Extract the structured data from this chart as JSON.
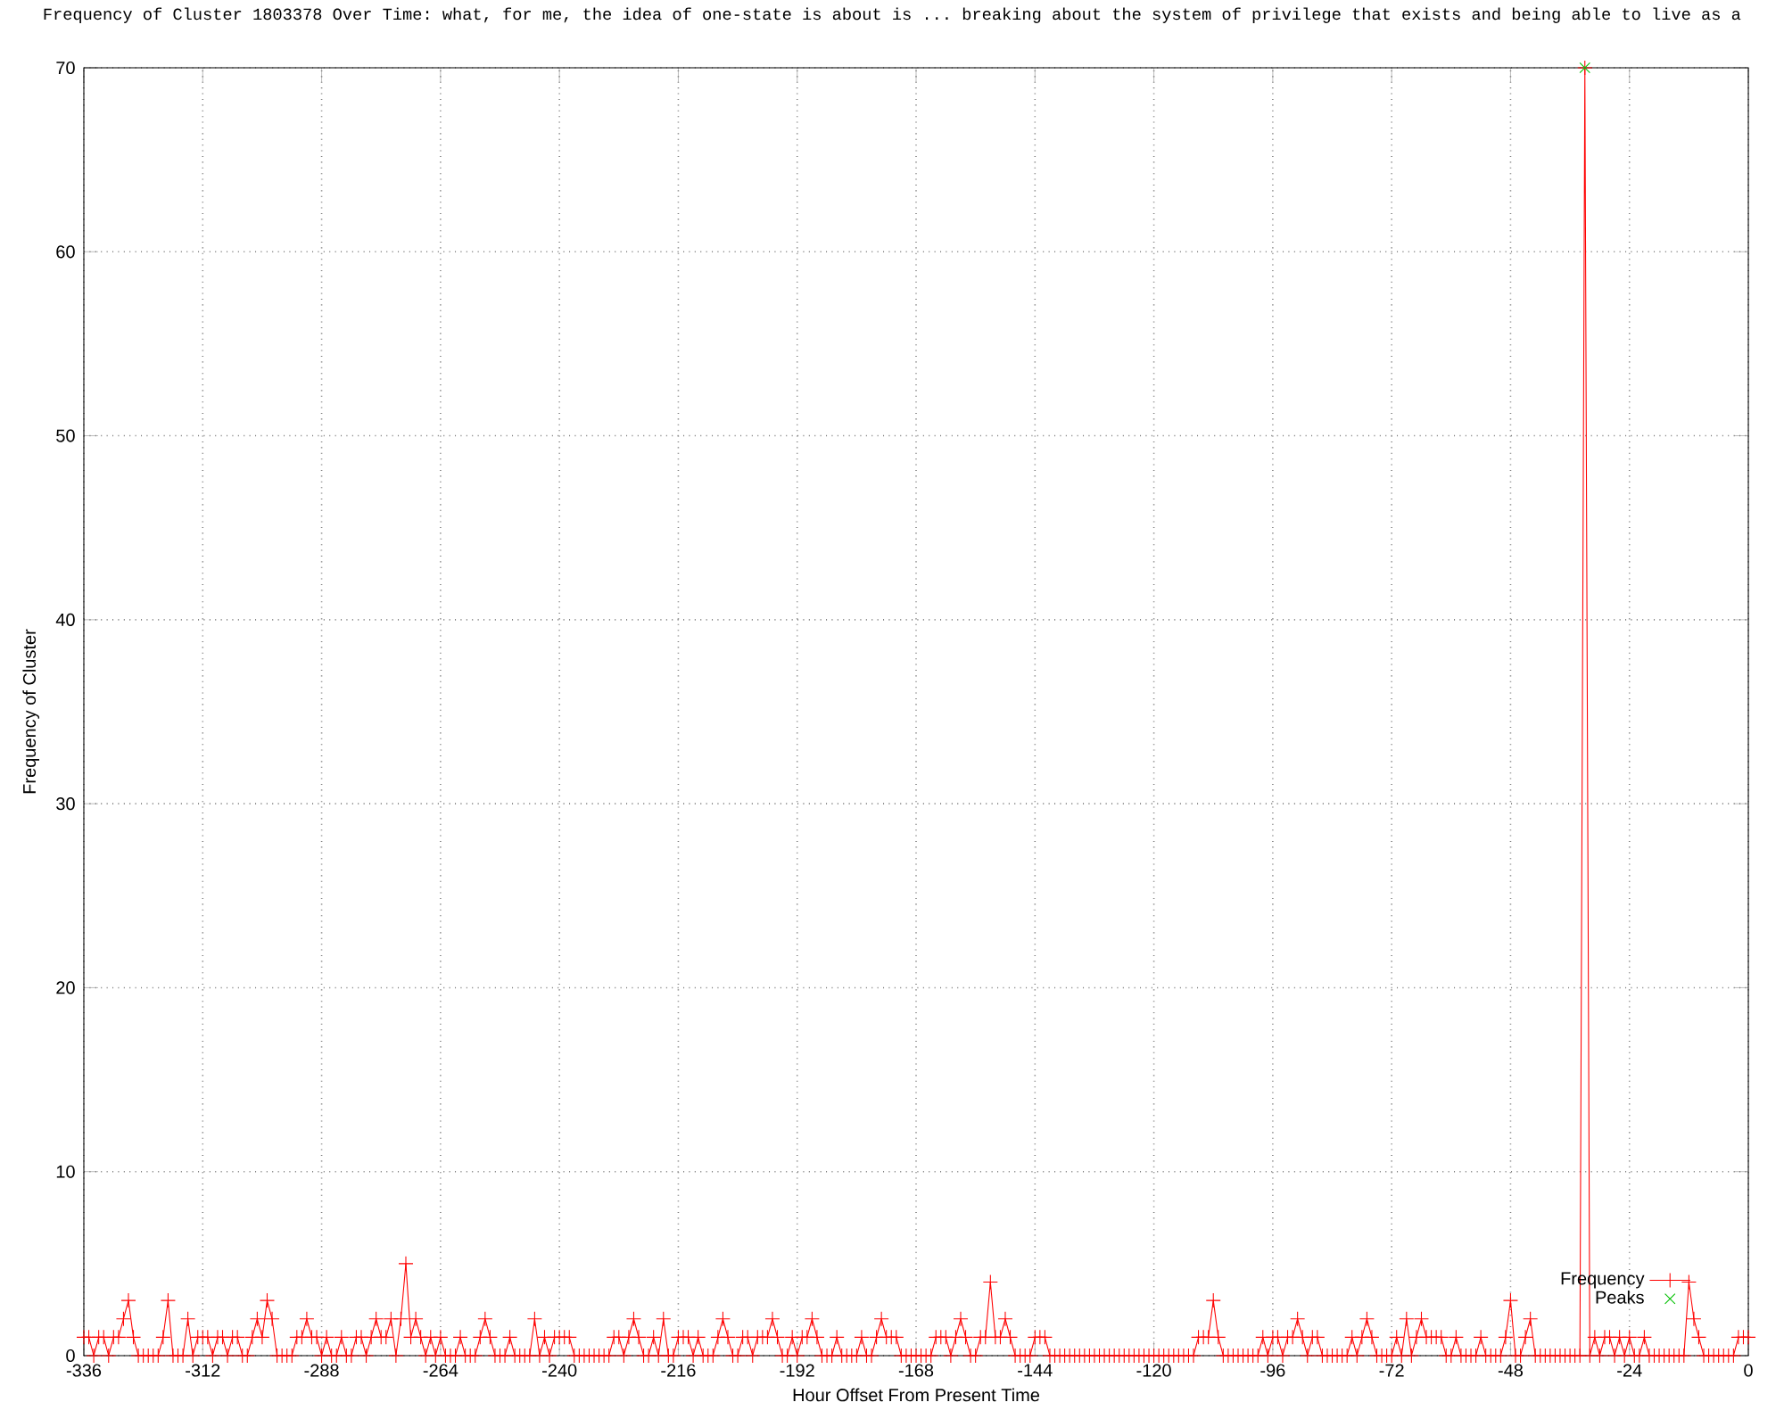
{
  "chart_data": {
    "type": "line",
    "title": "Frequency of Cluster 1803378 Over Time: what, for me, the idea of one-state is about is ... breaking about the system of privilege that exists and being able to live as a",
    "xlabel": "Hour Offset From Present Time",
    "ylabel": "Frequency of Cluster",
    "xlim": [
      -336,
      0
    ],
    "ylim": [
      0,
      70
    ],
    "xticks": [
      -336,
      -312,
      -288,
      -264,
      -240,
      -216,
      -192,
      -168,
      -144,
      -120,
      -96,
      -72,
      -48,
      -24,
      0
    ],
    "yticks": [
      0,
      10,
      20,
      30,
      40,
      50,
      60,
      70
    ],
    "grid": true,
    "legend": "bottom right",
    "marker": "cross",
    "line_style": "solid",
    "series": [
      {
        "name": "Frequency",
        "color": "#ff0000",
        "x": [
          -336,
          -335,
          -334,
          -333,
          -332,
          -331,
          -330,
          -329,
          -328,
          -327,
          -326,
          -325,
          -324,
          -323,
          -322,
          -321,
          -320,
          -319,
          -318,
          -317,
          -316,
          -315,
          -314,
          -313,
          -312,
          -311,
          -310,
          -309,
          -308,
          -307,
          -306,
          -305,
          -304,
          -303,
          -302,
          -301,
          -300,
          -299,
          -298,
          -297,
          -296,
          -295,
          -294,
          -293,
          -292,
          -291,
          -290,
          -289,
          -288,
          -287,
          -286,
          -285,
          -284,
          -283,
          -282,
          -281,
          -280,
          -279,
          -278,
          -277,
          -276,
          -275,
          -274,
          -273,
          -272,
          -271,
          -270,
          -269,
          -268,
          -267,
          -266,
          -265,
          -264,
          -263,
          -262,
          -261,
          -260,
          -259,
          -258,
          -257,
          -256,
          -255,
          -254,
          -253,
          -252,
          -251,
          -250,
          -249,
          -248,
          -247,
          -246,
          -245,
          -244,
          -243,
          -242,
          -241,
          -240,
          -239,
          -238,
          -237,
          -236,
          -235,
          -234,
          -233,
          -232,
          -231,
          -230,
          -229,
          -228,
          -227,
          -226,
          -225,
          -224,
          -223,
          -222,
          -221,
          -220,
          -219,
          -218,
          -217,
          -216,
          -215,
          -214,
          -213,
          -212,
          -211,
          -210,
          -209,
          -208,
          -207,
          -206,
          -205,
          -204,
          -203,
          -202,
          -201,
          -200,
          -199,
          -198,
          -197,
          -196,
          -195,
          -194,
          -193,
          -192,
          -191,
          -190,
          -189,
          -188,
          -187,
          -186,
          -185,
          -184,
          -183,
          -182,
          -181,
          -180,
          -179,
          -178,
          -177,
          -176,
          -175,
          -174,
          -173,
          -172,
          -171,
          -170,
          -169,
          -168,
          -167,
          -166,
          -165,
          -164,
          -163,
          -162,
          -161,
          -160,
          -159,
          -158,
          -157,
          -156,
          -155,
          -154,
          -153,
          -152,
          -151,
          -150,
          -149,
          -148,
          -147,
          -146,
          -145,
          -144,
          -143,
          -142,
          -141,
          -140,
          -139,
          -138,
          -137,
          -136,
          -135,
          -134,
          -133,
          -132,
          -131,
          -130,
          -129,
          -128,
          -127,
          -126,
          -125,
          -124,
          -123,
          -122,
          -121,
          -120,
          -119,
          -118,
          -117,
          -116,
          -115,
          -114,
          -113,
          -112,
          -111,
          -110,
          -109,
          -108,
          -107,
          -106,
          -105,
          -104,
          -103,
          -102,
          -101,
          -100,
          -99,
          -98,
          -97,
          -96,
          -95,
          -94,
          -93,
          -92,
          -91,
          -90,
          -89,
          -88,
          -87,
          -86,
          -85,
          -84,
          -83,
          -82,
          -81,
          -80,
          -79,
          -78,
          -77,
          -76,
          -75,
          -74,
          -73,
          -72,
          -71,
          -70,
          -69,
          -68,
          -67,
          -66,
          -65,
          -64,
          -63,
          -62,
          -61,
          -60,
          -59,
          -58,
          -57,
          -56,
          -55,
          -54,
          -53,
          -52,
          -51,
          -50,
          -49,
          -48,
          -47,
          -46,
          -45,
          -44,
          -43,
          -42,
          -41,
          -40,
          -39,
          -38,
          -37,
          -36,
          -35,
          -34,
          -33,
          -32,
          -31,
          -30,
          -29,
          -28,
          -27,
          -26,
          -25,
          -24,
          -23,
          -22,
          -21,
          -20,
          -19,
          -18,
          -17,
          -16,
          -15,
          -14,
          -13,
          -12,
          -11,
          -10,
          -9,
          -8,
          -7,
          -6,
          -5,
          -4,
          -3,
          -2,
          -1,
          0
        ],
        "values": [
          1,
          1,
          0,
          1,
          1,
          0,
          1,
          1,
          2,
          3,
          1,
          0,
          0,
          0,
          0,
          0,
          1,
          3,
          0,
          0,
          0,
          2,
          0,
          1,
          1,
          1,
          0,
          1,
          1,
          0,
          1,
          1,
          0,
          0,
          1,
          2,
          1,
          3,
          2,
          0,
          0,
          0,
          0,
          1,
          1,
          2,
          1,
          1,
          0,
          1,
          0,
          0,
          1,
          0,
          0,
          1,
          1,
          0,
          1,
          2,
          1,
          1,
          2,
          0,
          2,
          5,
          1,
          2,
          1,
          0,
          1,
          0,
          1,
          0,
          0,
          0,
          1,
          0,
          0,
          0,
          1,
          2,
          1,
          0,
          0,
          0,
          1,
          0,
          0,
          0,
          0,
          2,
          0,
          1,
          0,
          1,
          1,
          1,
          1,
          0,
          0,
          0,
          0,
          0,
          0,
          0,
          0,
          1,
          1,
          0,
          1,
          2,
          1,
          0,
          0,
          1,
          0,
          2,
          0,
          0,
          1,
          1,
          1,
          0,
          1,
          0,
          0,
          0,
          1,
          2,
          1,
          0,
          0,
          1,
          1,
          0,
          1,
          1,
          1,
          2,
          1,
          0,
          0,
          1,
          0,
          1,
          1,
          2,
          1,
          0,
          0,
          0,
          1,
          0,
          0,
          0,
          0,
          1,
          0,
          0,
          1,
          2,
          1,
          1,
          1,
          0,
          0,
          0,
          0,
          0,
          0,
          0,
          1,
          1,
          1,
          0,
          1,
          2,
          1,
          0,
          0,
          1,
          1,
          4,
          1,
          1,
          2,
          1,
          0,
          0,
          0,
          0,
          1,
          1,
          1,
          0,
          0,
          0,
          0,
          0,
          0,
          0,
          0,
          0,
          0,
          0,
          0,
          0,
          0,
          0,
          0,
          0,
          0,
          0,
          0,
          0,
          0,
          0,
          0,
          0,
          0,
          0,
          0,
          0,
          0,
          1,
          1,
          1,
          3,
          1,
          0,
          0,
          0,
          0,
          0,
          0,
          0,
          0,
          1,
          0,
          1,
          1,
          0,
          1,
          1,
          2,
          1,
          0,
          1,
          1,
          0,
          0,
          0,
          0,
          0,
          0,
          1,
          0,
          1,
          2,
          1,
          0,
          0,
          0,
          0,
          1,
          0,
          2,
          0,
          1,
          2,
          1,
          1,
          1,
          1,
          0,
          0,
          1,
          0,
          0,
          0,
          0,
          1,
          0,
          0,
          0,
          0,
          1,
          3,
          0,
          0,
          1,
          2,
          0,
          0,
          0,
          0,
          0,
          0,
          0,
          0,
          0,
          0,
          70,
          0,
          1,
          0,
          1,
          1,
          0,
          1,
          0,
          1,
          0,
          0,
          1,
          0,
          0,
          0,
          0,
          0,
          0,
          0,
          0,
          4,
          2,
          1,
          0,
          0,
          0,
          0,
          0,
          0,
          0,
          1,
          1,
          1
        ]
      },
      {
        "name": "Peaks",
        "color": "#00c000",
        "type": "scatter",
        "x": [
          -33
        ],
        "values": [
          70
        ]
      }
    ]
  }
}
